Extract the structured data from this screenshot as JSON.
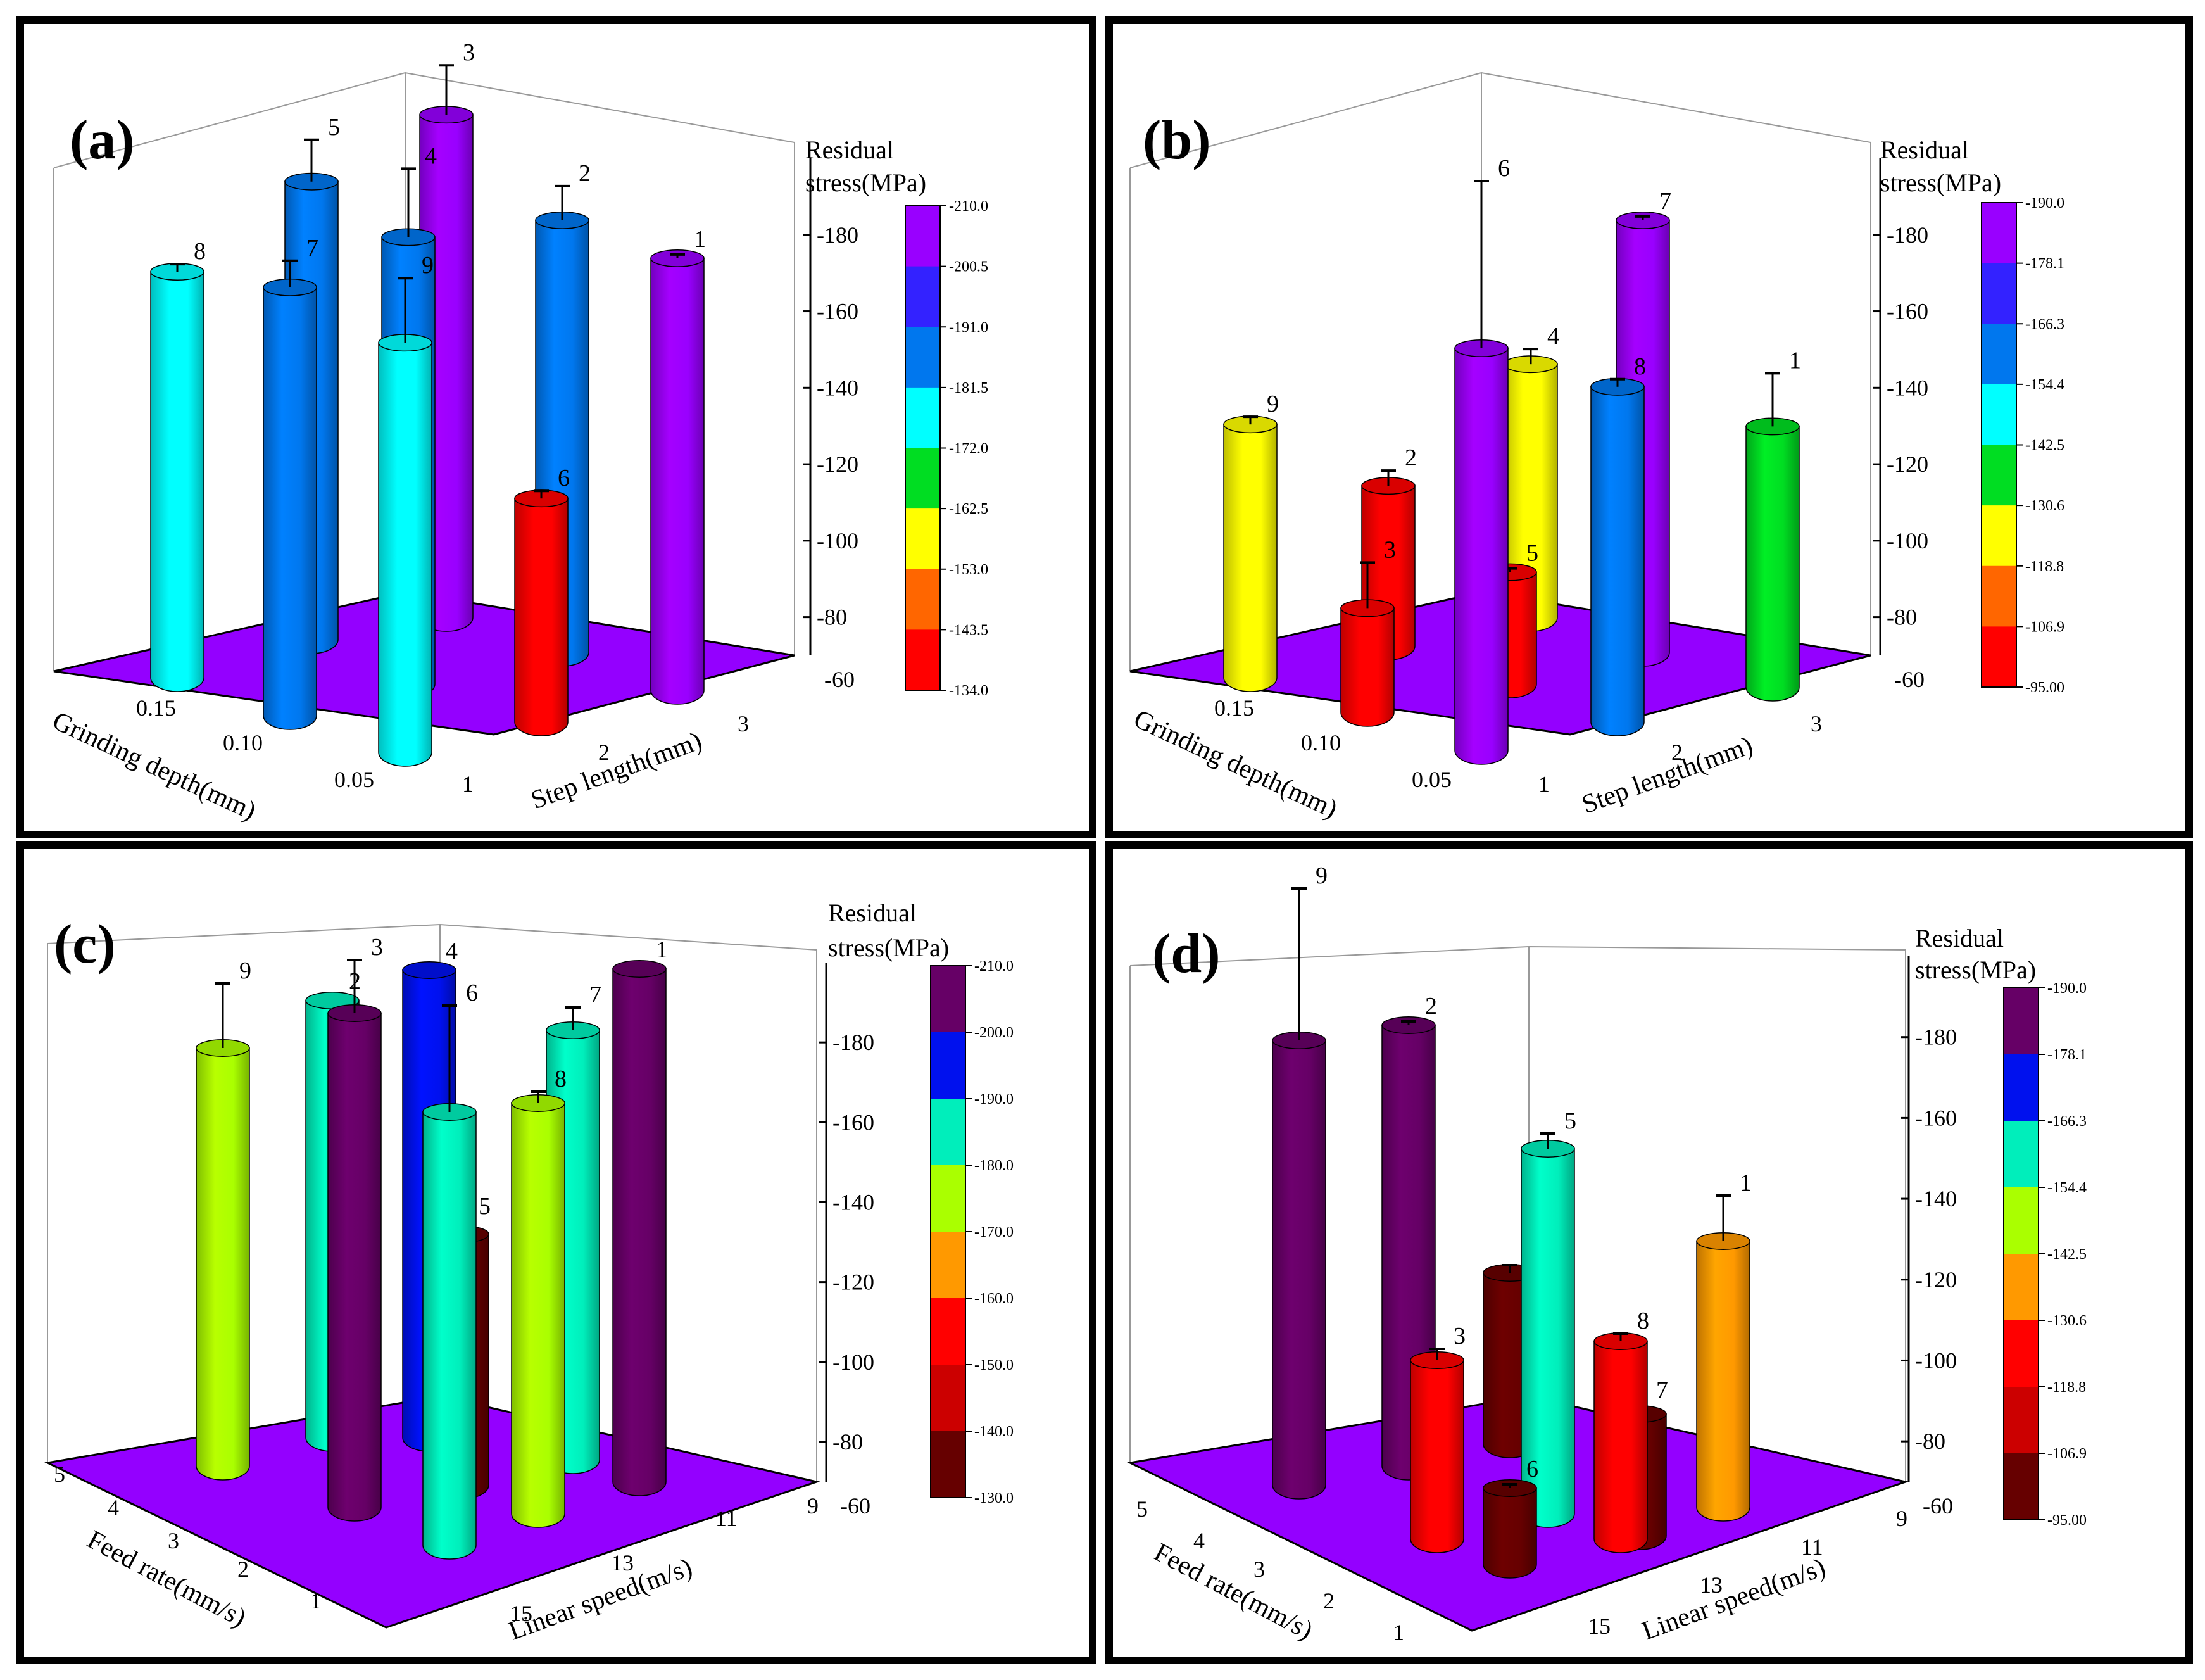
{
  "chart_data": [
    {
      "type": "bar",
      "panel": "(a)",
      "x_axis": {
        "label": "Grinding depth(mm)",
        "ticks": [
          "0.15",
          "0.10",
          "0.05"
        ]
      },
      "y_axis": {
        "label": "Step length(mm)",
        "ticks": [
          "3",
          "2",
          "1"
        ]
      },
      "z_axis": {
        "ticks": [
          "-80",
          "-100",
          "-120",
          "-140",
          "-160",
          "-180"
        ],
        "range": [
          -70,
          -200
        ],
        "origin_label": "-60"
      },
      "colorbar": {
        "title_line1": "Residual",
        "title_line2": "stress(MPa)",
        "ticks": [
          "-210.0",
          "-200.5",
          "-191.0",
          "-181.5",
          "-172.0",
          "-162.5",
          "-153.0",
          "-143.5",
          "-134.0"
        ],
        "colors": [
          "#9900ff",
          "#3322ff",
          "#0077ee",
          "#00ffff",
          "#00dd22",
          "#ffff00",
          "#ff6600",
          "#ff0000"
        ]
      },
      "bars": [
        {
          "label": "1",
          "value": -186,
          "err": 1,
          "color": "#9900ff"
        },
        {
          "label": "2",
          "value": -186,
          "err": 9,
          "color": "#0077ee"
        },
        {
          "label": "3",
          "value": -205,
          "err": 13,
          "color": "#9900ff"
        },
        {
          "label": "4",
          "value": -190,
          "err": 18,
          "color": "#0077ee"
        },
        {
          "label": "5",
          "value": -193,
          "err": 11,
          "color": "#0077ee"
        },
        {
          "label": "6",
          "value": -130,
          "err": 2,
          "color": "#ff0000"
        },
        {
          "label": "7",
          "value": -185,
          "err": 7,
          "color": "#0077ee"
        },
        {
          "label": "8",
          "value": -179,
          "err": 2,
          "color": "#00ffff"
        },
        {
          "label": "9",
          "value": -180,
          "err": 17,
          "color": "#00ffff"
        }
      ]
    },
    {
      "type": "bar",
      "panel": "(b)",
      "x_axis": {
        "label": "Grinding depth(mm)",
        "ticks": [
          "0.15",
          "0.10",
          "0.05"
        ]
      },
      "y_axis": {
        "label": "Step length(mm)",
        "ticks": [
          "3",
          "2",
          "1"
        ]
      },
      "z_axis": {
        "ticks": [
          "-80",
          "-100",
          "-120",
          "-140",
          "-160",
          "-180"
        ],
        "range": [
          -70,
          -200
        ],
        "origin_label": "-60"
      },
      "colorbar": {
        "title_line1": "Residual",
        "title_line2": "stress(MPa)",
        "ticks": [
          "-190.0",
          "-178.1",
          "-166.3",
          "-154.4",
          "-142.5",
          "-130.6",
          "-118.8",
          "-106.9",
          "-95.00"
        ],
        "colors": [
          "#9900ff",
          "#3322ff",
          "#0077ee",
          "#00ffff",
          "#00dd22",
          "#ffff00",
          "#ff6600",
          "#ff0000"
        ]
      },
      "bars": [
        {
          "label": "1",
          "value": -140,
          "err": 14,
          "color": "#00dd22"
        },
        {
          "label": "2",
          "value": -113,
          "err": 4,
          "color": "#ff0000"
        },
        {
          "label": "3",
          "value": -98,
          "err": 12,
          "color": "#ff0000"
        },
        {
          "label": "4",
          "value": -138,
          "err": 4,
          "color": "#ffff00"
        },
        {
          "label": "5",
          "value": -100,
          "err": 1,
          "color": "#ff0000"
        },
        {
          "label": "6",
          "value": -178,
          "err": 44,
          "color": "#9900ff"
        },
        {
          "label": "7",
          "value": -186,
          "err": 1,
          "color": "#9900ff"
        },
        {
          "label": "8",
          "value": -160,
          "err": 2,
          "color": "#0077ee"
        },
        {
          "label": "9",
          "value": -138,
          "err": 2,
          "color": "#ffff00"
        }
      ]
    },
    {
      "type": "bar",
      "panel": "(c)",
      "x_axis": {
        "label": "Feed rate(mm/s)",
        "ticks": [
          "5",
          "4",
          "3",
          "2",
          "1"
        ]
      },
      "y_axis": {
        "label": "Linear speed(m/s)",
        "ticks": [
          "15",
          "13",
          "11",
          "9"
        ]
      },
      "z_axis": {
        "ticks": [
          "-80",
          "-100",
          "-120",
          "-140",
          "-160",
          "-180"
        ],
        "range": [
          -70,
          -200
        ],
        "origin_label": "-60"
      },
      "colorbar": {
        "title_line1": "Residual",
        "title_line2": "stress(MPa)",
        "ticks": [
          "-210.0",
          "-200.0",
          "-190.0",
          "-180.0",
          "-170.0",
          "-160.0",
          "-150.0",
          "-140.0",
          "-130.0"
        ],
        "colors": [
          "#660066",
          "#0011ee",
          "#00eebb",
          "#aaff00",
          "#ff9900",
          "#ff0000",
          "#cc0000",
          "#660000"
        ]
      },
      "bars": [
        {
          "label": "1",
          "value": -205,
          "err": 0,
          "color": "#660066"
        },
        {
          "label": "2",
          "value": -185,
          "err": 0,
          "color": "#00eebb"
        },
        {
          "label": "3",
          "value": -200,
          "err": 14,
          "color": "#660066"
        },
        {
          "label": "4",
          "value": -193,
          "err": 0,
          "color": "#0011ee"
        },
        {
          "label": "5",
          "value": -136,
          "err": 4,
          "color": "#660000"
        },
        {
          "label": "6",
          "value": -184,
          "err": 28,
          "color": "#00eebb"
        },
        {
          "label": "7",
          "value": -183,
          "err": 6,
          "color": "#00eebb"
        },
        {
          "label": "8",
          "value": -178,
          "err": 3,
          "color": "#aaff00"
        },
        {
          "label": "9",
          "value": -180,
          "err": 17,
          "color": "#aaff00"
        }
      ]
    },
    {
      "type": "bar",
      "panel": "(d)",
      "x_axis": {
        "label": "Feed rate(mm/s)",
        "ticks": [
          "5",
          "4",
          "3",
          "2",
          "1"
        ]
      },
      "y_axis": {
        "label": "Linear speed(m/s)",
        "ticks": [
          "15",
          "13",
          "11",
          "9"
        ]
      },
      "z_axis": {
        "ticks": [
          "-80",
          "-100",
          "-120",
          "-140",
          "-160",
          "-180"
        ],
        "range": [
          -70,
          -200
        ],
        "origin_label": "-60"
      },
      "colorbar": {
        "title_line1": "Residual",
        "title_line2": "stress(MPa)",
        "ticks": [
          "-190.0",
          "-178.1",
          "-166.3",
          "-154.4",
          "-142.5",
          "-130.6",
          "-118.8",
          "-106.9",
          "-95.00"
        ],
        "colors": [
          "#660066",
          "#0011ee",
          "#00eebb",
          "#aaff00",
          "#ff9900",
          "#ff0000",
          "#cc0000",
          "#660000"
        ]
      },
      "bars": [
        {
          "label": "1",
          "value": -140,
          "err": 12,
          "color": "#ff9900"
        },
        {
          "label": "2",
          "value": -186,
          "err": 1,
          "color": "#660066"
        },
        {
          "label": "3",
          "value": -117,
          "err": 3,
          "color": "#ff0000"
        },
        {
          "label": "4",
          "value": -115,
          "err": 2,
          "color": "#660000"
        },
        {
          "label": "5",
          "value": -166,
          "err": 4,
          "color": "#00eebb"
        },
        {
          "label": "6",
          "value": -90,
          "err": 1,
          "color": "#660000"
        },
        {
          "label": "7",
          "value": -102,
          "err": 3,
          "color": "#660000"
        },
        {
          "label": "8",
          "value": -122,
          "err": 2,
          "color": "#ff0000"
        },
        {
          "label": "9",
          "value": -187,
          "err": 40,
          "color": "#660066"
        }
      ]
    }
  ]
}
